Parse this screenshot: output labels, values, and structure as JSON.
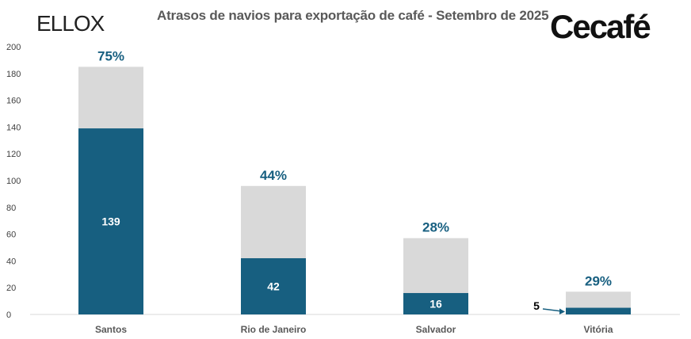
{
  "title": "Atrasos de navios para exportação de café - Setembro de 2025",
  "logos": {
    "left": "ELLOX",
    "right": "Cecafé"
  },
  "colors": {
    "delayed": "#175f80",
    "total": "#d9d9d9",
    "percent_text": "#175f80"
  },
  "chart_data": {
    "type": "bar",
    "stacked": true,
    "title": "Atrasos de navios para exportação de café - Setembro de 2025",
    "categories": [
      "Santos",
      "Rio de Janeiro",
      "Salvador",
      "Vitória"
    ],
    "series": [
      {
        "values": [
          139,
          42,
          16,
          5
        ],
        "color": "#175f80"
      },
      {
        "values": [
          46,
          54,
          41,
          12
        ],
        "color": "#d9d9d9"
      }
    ],
    "totals": [
      185,
      96,
      57,
      17
    ],
    "data_labels": [
      "139",
      "42",
      "16",
      "5"
    ],
    "percent_labels": [
      "75%",
      "44%",
      "28%",
      "29%"
    ],
    "ylim": [
      0,
      200
    ],
    "yticks": [
      0,
      20,
      40,
      60,
      80,
      100,
      120,
      140,
      160,
      180,
      200
    ],
    "grid": false,
    "legend": "none"
  }
}
